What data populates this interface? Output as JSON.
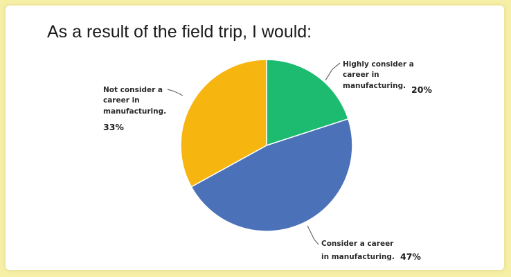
{
  "chart_data": {
    "type": "pie",
    "title": "As a result of the field trip, I would:",
    "slices": [
      {
        "label_lines": [
          "Highly consider a",
          "career in",
          "manufacturing."
        ],
        "percent_label": "20%",
        "value": 20,
        "color": "#1dbb6f"
      },
      {
        "label_lines": [
          "Consider a career",
          "in manufacturing."
        ],
        "percent_label": "47%",
        "value": 47,
        "color": "#4b72b8"
      },
      {
        "label_lines": [
          "Not consider a",
          "career in",
          "manufacturing."
        ],
        "percent_label": "33%",
        "value": 33,
        "color": "#f6b50f"
      }
    ],
    "start_angle": "12 o'clock",
    "direction": "clockwise",
    "legend": "none"
  }
}
